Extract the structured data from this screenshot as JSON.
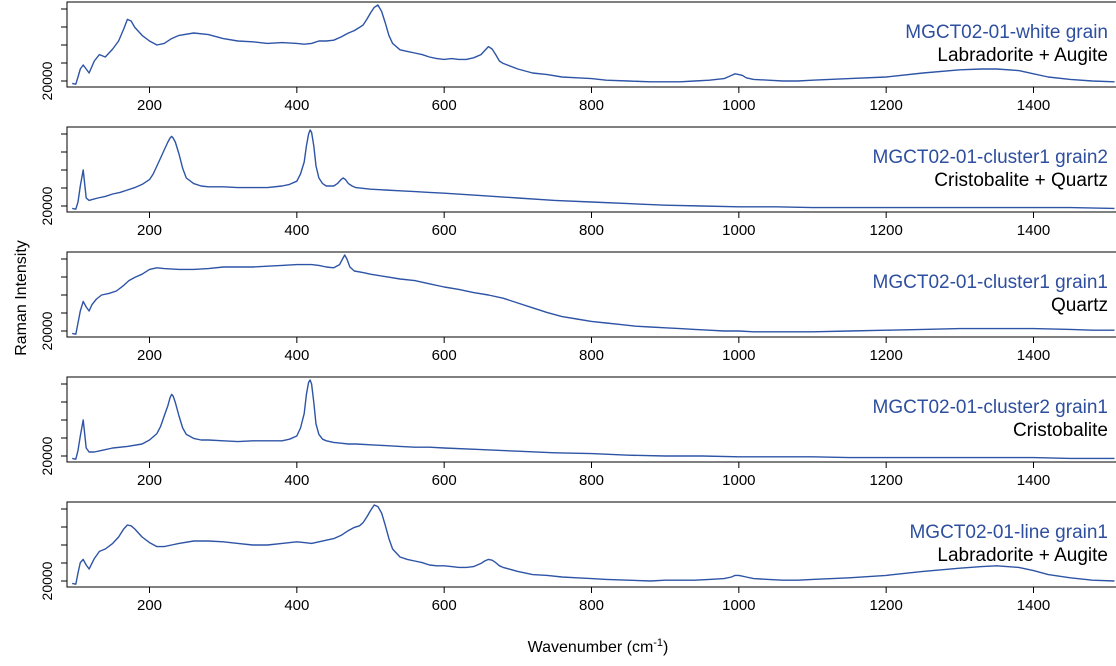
{
  "chart_data": {
    "type": "line",
    "ylabel": "Raman Intensity",
    "xlabel": "Wavenumber (cm",
    "xlabel_sup": "-1",
    "xlabel_close": ")",
    "xlim": [
      88,
      1512
    ],
    "x_ticks": [
      200,
      400,
      600,
      800,
      1000,
      1200,
      1400
    ],
    "y_tick_label": "20000",
    "sample_color": "#2e4f9f",
    "line_color": "#2e54a6",
    "panels": [
      {
        "sample": "MGCT02-01-white grain",
        "mineral": "Labradorite + Augite",
        "series": {
          "x": [
            95,
            100,
            103,
            106,
            110,
            114,
            118,
            125,
            132,
            140,
            150,
            158,
            165,
            170,
            175,
            180,
            190,
            200,
            210,
            220,
            230,
            240,
            260,
            280,
            300,
            320,
            340,
            360,
            380,
            400,
            410,
            420,
            430,
            440,
            450,
            460,
            470,
            478,
            485,
            490,
            495,
            500,
            505,
            510,
            515,
            520,
            525,
            530,
            540,
            550,
            560,
            570,
            580,
            590,
            600,
            610,
            620,
            630,
            640,
            650,
            655,
            660,
            665,
            670,
            675,
            680,
            700,
            720,
            740,
            760,
            780,
            800,
            820,
            850,
            880,
            900,
            920,
            940,
            960,
            980,
            990,
            995,
            1000,
            1005,
            1010,
            1020,
            1040,
            1060,
            1080,
            1100,
            1150,
            1200,
            1250,
            1300,
            1330,
            1350,
            1380,
            1400,
            1420,
            1450,
            1480,
            1510
          ],
          "y": [
            0.02,
            0.01,
            0.1,
            0.2,
            0.25,
            0.2,
            0.15,
            0.3,
            0.38,
            0.35,
            0.45,
            0.55,
            0.7,
            0.82,
            0.8,
            0.72,
            0.62,
            0.55,
            0.5,
            0.52,
            0.58,
            0.62,
            0.65,
            0.63,
            0.58,
            0.55,
            0.54,
            0.52,
            0.53,
            0.52,
            0.51,
            0.52,
            0.55,
            0.55,
            0.56,
            0.6,
            0.65,
            0.68,
            0.72,
            0.75,
            0.82,
            0.9,
            0.97,
            1.0,
            0.92,
            0.78,
            0.62,
            0.52,
            0.44,
            0.42,
            0.4,
            0.38,
            0.35,
            0.33,
            0.32,
            0.33,
            0.32,
            0.32,
            0.34,
            0.38,
            0.43,
            0.48,
            0.45,
            0.38,
            0.3,
            0.27,
            0.2,
            0.15,
            0.13,
            0.1,
            0.09,
            0.08,
            0.06,
            0.05,
            0.04,
            0.04,
            0.04,
            0.05,
            0.06,
            0.08,
            0.12,
            0.14,
            0.13,
            0.12,
            0.09,
            0.07,
            0.06,
            0.05,
            0.05,
            0.06,
            0.08,
            0.1,
            0.15,
            0.19,
            0.2,
            0.2,
            0.18,
            0.14,
            0.1,
            0.07,
            0.05,
            0.04
          ]
        }
      },
      {
        "sample": "MGCT02-01-cluster1 grain2",
        "mineral": "Cristobalite + Quartz",
        "series": {
          "x": [
            95,
            100,
            103,
            106,
            110,
            114,
            118,
            122,
            130,
            140,
            150,
            160,
            170,
            180,
            190,
            200,
            205,
            210,
            215,
            220,
            225,
            228,
            230,
            232,
            235,
            240,
            245,
            250,
            260,
            270,
            280,
            290,
            300,
            320,
            340,
            360,
            380,
            390,
            400,
            405,
            410,
            413,
            416,
            418,
            420,
            423,
            426,
            430,
            435,
            440,
            450,
            455,
            460,
            463,
            466,
            470,
            475,
            480,
            500,
            520,
            540,
            560,
            580,
            600,
            650,
            700,
            750,
            800,
            850,
            900,
            950,
            1000,
            1050,
            1100,
            1150,
            1200,
            1250,
            1300,
            1350,
            1400,
            1450,
            1510
          ],
          "y": [
            0.02,
            0.01,
            0.1,
            0.3,
            0.5,
            0.15,
            0.12,
            0.13,
            0.15,
            0.17,
            0.2,
            0.22,
            0.25,
            0.28,
            0.32,
            0.38,
            0.45,
            0.55,
            0.65,
            0.75,
            0.85,
            0.9,
            0.92,
            0.9,
            0.85,
            0.7,
            0.52,
            0.4,
            0.33,
            0.3,
            0.29,
            0.29,
            0.29,
            0.28,
            0.28,
            0.28,
            0.3,
            0.32,
            0.36,
            0.45,
            0.6,
            0.8,
            0.95,
            1.0,
            0.97,
            0.8,
            0.55,
            0.4,
            0.33,
            0.3,
            0.3,
            0.33,
            0.38,
            0.4,
            0.38,
            0.33,
            0.3,
            0.28,
            0.26,
            0.25,
            0.24,
            0.23,
            0.22,
            0.21,
            0.18,
            0.15,
            0.12,
            0.1,
            0.08,
            0.06,
            0.05,
            0.04,
            0.04,
            0.03,
            0.03,
            0.03,
            0.03,
            0.03,
            0.03,
            0.03,
            0.03,
            0.02
          ]
        }
      },
      {
        "sample": "MGCT02-01-cluster1 grain1",
        "mineral": "Quartz",
        "series": {
          "x": [
            95,
            100,
            103,
            106,
            110,
            114,
            118,
            122,
            128,
            135,
            145,
            155,
            165,
            172,
            180,
            190,
            200,
            210,
            220,
            240,
            260,
            280,
            300,
            320,
            340,
            360,
            380,
            400,
            410,
            420,
            430,
            440,
            450,
            458,
            462,
            465,
            468,
            472,
            478,
            490,
            500,
            520,
            540,
            560,
            580,
            600,
            620,
            640,
            660,
            680,
            700,
            720,
            740,
            760,
            780,
            800,
            820,
            840,
            860,
            880,
            900,
            920,
            940,
            960,
            980,
            1000,
            1020,
            1040,
            1060,
            1080,
            1100,
            1150,
            1200,
            1250,
            1300,
            1350,
            1400,
            1450,
            1480,
            1510
          ],
          "y": [
            0.02,
            0.01,
            0.15,
            0.3,
            0.42,
            0.35,
            0.3,
            0.38,
            0.45,
            0.5,
            0.52,
            0.55,
            0.62,
            0.68,
            0.72,
            0.76,
            0.82,
            0.84,
            0.83,
            0.82,
            0.82,
            0.83,
            0.85,
            0.85,
            0.85,
            0.86,
            0.87,
            0.88,
            0.88,
            0.88,
            0.87,
            0.85,
            0.84,
            0.88,
            0.95,
            1.0,
            0.95,
            0.85,
            0.8,
            0.78,
            0.76,
            0.73,
            0.7,
            0.68,
            0.64,
            0.6,
            0.57,
            0.53,
            0.5,
            0.46,
            0.4,
            0.34,
            0.28,
            0.23,
            0.2,
            0.17,
            0.15,
            0.13,
            0.11,
            0.1,
            0.09,
            0.08,
            0.07,
            0.06,
            0.05,
            0.05,
            0.04,
            0.04,
            0.04,
            0.04,
            0.04,
            0.05,
            0.06,
            0.07,
            0.08,
            0.08,
            0.08,
            0.07,
            0.06,
            0.06
          ]
        }
      },
      {
        "sample": "MGCT02-01-cluster2 grain1",
        "mineral": "Cristobalite",
        "series": {
          "x": [
            95,
            100,
            103,
            106,
            110,
            114,
            118,
            125,
            135,
            150,
            170,
            190,
            200,
            210,
            215,
            220,
            225,
            228,
            230,
            232,
            235,
            240,
            245,
            250,
            260,
            270,
            280,
            300,
            320,
            340,
            360,
            380,
            390,
            400,
            405,
            410,
            413,
            416,
            418,
            420,
            423,
            426,
            430,
            435,
            440,
            450,
            460,
            470,
            480,
            500,
            520,
            540,
            560,
            580,
            600,
            650,
            700,
            750,
            800,
            850,
            900,
            950,
            1000,
            1050,
            1100,
            1150,
            1200,
            1250,
            1300,
            1350,
            1400,
            1450,
            1510
          ],
          "y": [
            0.02,
            0.01,
            0.12,
            0.3,
            0.5,
            0.15,
            0.1,
            0.1,
            0.12,
            0.15,
            0.17,
            0.2,
            0.25,
            0.33,
            0.42,
            0.55,
            0.68,
            0.78,
            0.82,
            0.8,
            0.72,
            0.55,
            0.4,
            0.32,
            0.27,
            0.25,
            0.25,
            0.24,
            0.23,
            0.24,
            0.24,
            0.24,
            0.26,
            0.3,
            0.4,
            0.58,
            0.82,
            0.97,
            1.0,
            0.95,
            0.72,
            0.45,
            0.32,
            0.26,
            0.24,
            0.22,
            0.21,
            0.2,
            0.2,
            0.19,
            0.18,
            0.17,
            0.16,
            0.16,
            0.15,
            0.13,
            0.11,
            0.09,
            0.08,
            0.06,
            0.05,
            0.05,
            0.04,
            0.04,
            0.04,
            0.03,
            0.03,
            0.03,
            0.03,
            0.03,
            0.03,
            0.02,
            0.02
          ]
        }
      },
      {
        "sample": "MGCT02-01-line grain1",
        "mineral": "Labradorite + Augite",
        "series": {
          "x": [
            95,
            100,
            103,
            106,
            110,
            114,
            118,
            125,
            132,
            140,
            150,
            158,
            165,
            170,
            175,
            180,
            190,
            200,
            210,
            220,
            230,
            240,
            260,
            280,
            300,
            320,
            340,
            360,
            380,
            400,
            410,
            420,
            430,
            440,
            450,
            460,
            470,
            478,
            485,
            490,
            495,
            500,
            505,
            510,
            515,
            520,
            525,
            530,
            540,
            550,
            560,
            570,
            580,
            590,
            600,
            610,
            620,
            630,
            640,
            650,
            655,
            660,
            665,
            670,
            675,
            680,
            700,
            720,
            740,
            760,
            780,
            800,
            820,
            850,
            880,
            900,
            920,
            940,
            960,
            980,
            990,
            995,
            1000,
            1005,
            1010,
            1020,
            1040,
            1060,
            1080,
            1100,
            1150,
            1200,
            1250,
            1300,
            1330,
            1350,
            1380,
            1400,
            1420,
            1450,
            1480,
            1510
          ],
          "y": [
            0.02,
            0.01,
            0.15,
            0.28,
            0.32,
            0.25,
            0.2,
            0.33,
            0.42,
            0.45,
            0.52,
            0.6,
            0.7,
            0.75,
            0.74,
            0.7,
            0.6,
            0.53,
            0.48,
            0.48,
            0.5,
            0.52,
            0.55,
            0.55,
            0.54,
            0.52,
            0.5,
            0.5,
            0.52,
            0.54,
            0.53,
            0.52,
            0.54,
            0.56,
            0.58,
            0.62,
            0.68,
            0.72,
            0.74,
            0.78,
            0.85,
            0.93,
            1.0,
            0.98,
            0.9,
            0.75,
            0.58,
            0.45,
            0.35,
            0.32,
            0.3,
            0.28,
            0.25,
            0.24,
            0.24,
            0.23,
            0.22,
            0.22,
            0.23,
            0.27,
            0.3,
            0.32,
            0.31,
            0.28,
            0.24,
            0.22,
            0.17,
            0.13,
            0.12,
            0.1,
            0.09,
            0.08,
            0.07,
            0.06,
            0.05,
            0.06,
            0.06,
            0.06,
            0.07,
            0.08,
            0.1,
            0.12,
            0.12,
            0.11,
            0.1,
            0.08,
            0.07,
            0.06,
            0.06,
            0.07,
            0.09,
            0.12,
            0.17,
            0.21,
            0.23,
            0.24,
            0.22,
            0.18,
            0.13,
            0.09,
            0.06,
            0.05
          ]
        }
      }
    ]
  }
}
